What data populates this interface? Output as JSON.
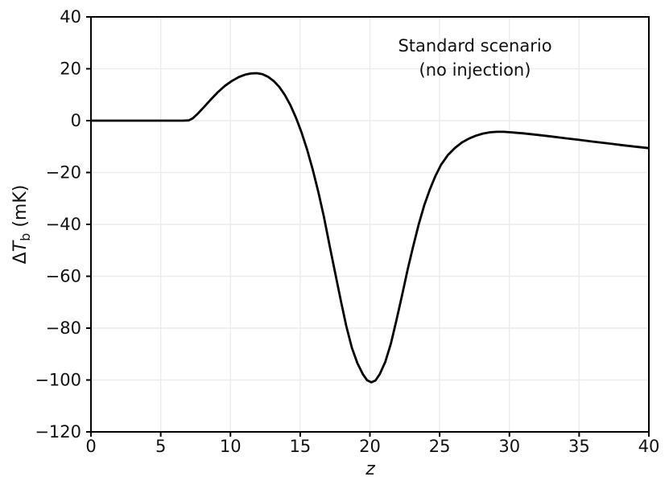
{
  "figure": {
    "background": "#ffffff",
    "annotation": {
      "line1": "Standard scenario",
      "line2": "(no injection)"
    },
    "ylabel_parts": {
      "delta": "Δ",
      "symbol": "T",
      "sub": "b",
      "unit": " (mK)"
    }
  },
  "chart_data": {
    "type": "line",
    "title": "",
    "annotation_lines": [
      "Standard scenario",
      "(no injection)"
    ],
    "xlabel": "z",
    "ylabel": "ΔT_b (mK)",
    "xlim": [
      0,
      40
    ],
    "ylim": [
      -120,
      40
    ],
    "xticks": [
      0,
      5,
      10,
      15,
      20,
      25,
      30,
      35,
      40
    ],
    "yticks": [
      -120,
      -100,
      -80,
      -60,
      -40,
      -20,
      0,
      20,
      40
    ],
    "grid": true,
    "legend": "none",
    "colors": {
      "line": "#000000",
      "grid": "#ececec",
      "spine": "#000000",
      "tick_label": "#111111"
    },
    "series": [
      {
        "name": "standard-scenario-no-injection",
        "color": "#000000",
        "points": [
          [
            0,
            0
          ],
          [
            1,
            0
          ],
          [
            2,
            0
          ],
          [
            3,
            0
          ],
          [
            4,
            0
          ],
          [
            5,
            0
          ],
          [
            6,
            0
          ],
          [
            6.6,
            0
          ],
          [
            7.0,
            0.1
          ],
          [
            7.3,
            0.9
          ],
          [
            7.7,
            2.9
          ],
          [
            8.1,
            5.2
          ],
          [
            8.6,
            8.2
          ],
          [
            9.1,
            11.0
          ],
          [
            9.6,
            13.4
          ],
          [
            10.1,
            15.3
          ],
          [
            10.6,
            16.8
          ],
          [
            11.1,
            17.8
          ],
          [
            11.5,
            18.2
          ],
          [
            11.9,
            18.3
          ],
          [
            12.3,
            17.9
          ],
          [
            12.7,
            16.9
          ],
          [
            13.1,
            15.3
          ],
          [
            13.5,
            13.0
          ],
          [
            13.9,
            9.9
          ],
          [
            14.3,
            6.0
          ],
          [
            14.7,
            1.1
          ],
          [
            15.1,
            -4.6
          ],
          [
            15.5,
            -11.2
          ],
          [
            15.9,
            -18.9
          ],
          [
            16.3,
            -27.5
          ],
          [
            16.7,
            -37.0
          ],
          [
            17.1,
            -48.0
          ],
          [
            17.5,
            -58.5
          ],
          [
            17.9,
            -69.0
          ],
          [
            18.3,
            -79.0
          ],
          [
            18.7,
            -87.5
          ],
          [
            19.1,
            -93.5
          ],
          [
            19.5,
            -97.8
          ],
          [
            19.8,
            -100.1
          ],
          [
            20.1,
            -100.9
          ],
          [
            20.4,
            -100.2
          ],
          [
            20.7,
            -97.8
          ],
          [
            21.1,
            -93.0
          ],
          [
            21.5,
            -86.0
          ],
          [
            21.9,
            -77.0
          ],
          [
            22.3,
            -67.5
          ],
          [
            22.7,
            -57.5
          ],
          [
            23.1,
            -48.5
          ],
          [
            23.5,
            -40.0
          ],
          [
            23.9,
            -32.5
          ],
          [
            24.3,
            -26.5
          ],
          [
            24.7,
            -21.3
          ],
          [
            25.1,
            -17.0
          ],
          [
            25.6,
            -13.2
          ],
          [
            26.1,
            -10.5
          ],
          [
            26.6,
            -8.4
          ],
          [
            27.1,
            -6.9
          ],
          [
            27.6,
            -5.8
          ],
          [
            28.1,
            -5.0
          ],
          [
            28.6,
            -4.5
          ],
          [
            29.1,
            -4.3
          ],
          [
            29.6,
            -4.3
          ],
          [
            30.1,
            -4.5
          ],
          [
            31,
            -4.9
          ],
          [
            32,
            -5.5
          ],
          [
            33,
            -6.1
          ],
          [
            34,
            -6.8
          ],
          [
            35,
            -7.4
          ],
          [
            36,
            -8.1
          ],
          [
            37,
            -8.7
          ],
          [
            38,
            -9.4
          ],
          [
            39,
            -10.0
          ],
          [
            40,
            -10.6
          ]
        ]
      }
    ]
  }
}
